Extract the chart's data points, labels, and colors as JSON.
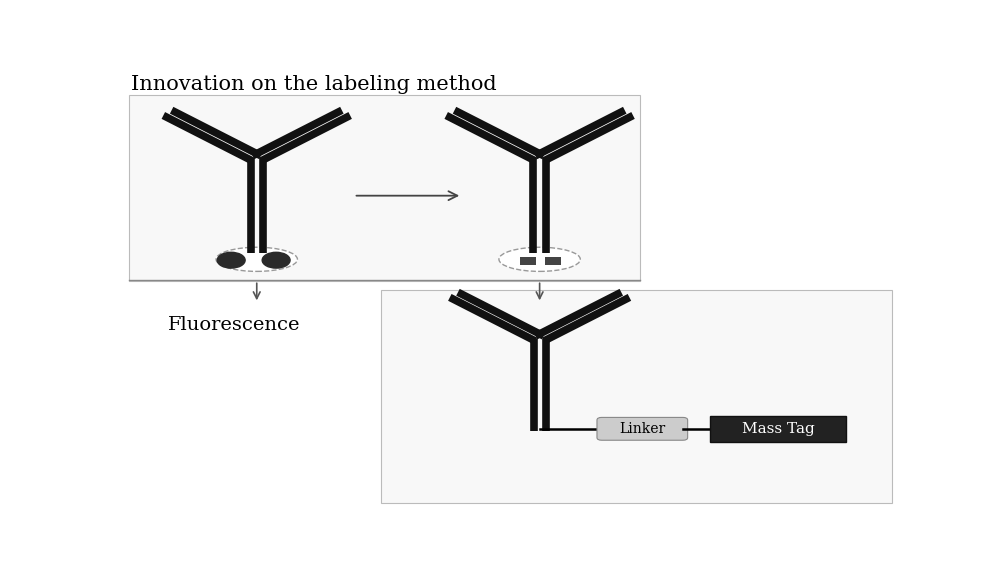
{
  "title": "Innovation on the labeling method",
  "title_fontsize": 15,
  "background_color": "#ffffff",
  "top_box_color": "#f8f8f8",
  "bottom_box_color": "#f8f8f8",
  "box_edge_color": "#bbbbbb",
  "fluorescence_label": "Fluorescence",
  "linker_label": "Linker",
  "mass_tag_label": "Mass Tag",
  "antibody_color": "#111111",
  "dot_color": "#2a2a2a",
  "square_color": "#444444",
  "mass_tag_bg": "#222222",
  "linker_bg": "#cccccc",
  "arrow_color": "#444444",
  "down_arrow_color": "#555555"
}
